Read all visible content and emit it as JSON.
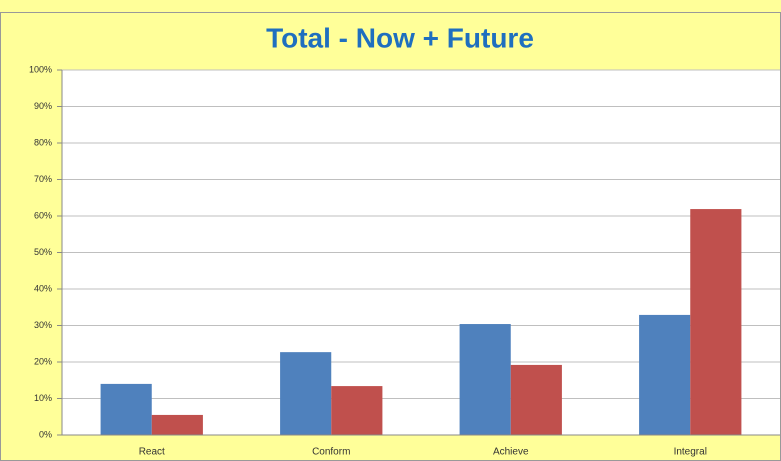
{
  "chart_data": {
    "type": "bar",
    "title": "Total - Now + Future",
    "categories": [
      "React",
      "Conform",
      "Achieve",
      "Integral"
    ],
    "series": [
      {
        "color": "#4F81BD",
        "values": [
          14,
          22.7,
          30.4,
          32.9
        ]
      },
      {
        "color": "#C0504D",
        "values": [
          5.5,
          13.4,
          19.2,
          61.9
        ]
      }
    ],
    "ylim": [
      0,
      100
    ],
    "yticks": [
      {
        "value": 0,
        "label": "0%"
      },
      {
        "value": 10,
        "label": "10%"
      },
      {
        "value": 20,
        "label": "20%"
      },
      {
        "value": 30,
        "label": "30%"
      },
      {
        "value": 40,
        "label": "40%"
      },
      {
        "value": 50,
        "label": "50%"
      },
      {
        "value": 60,
        "label": "60%"
      },
      {
        "value": 70,
        "label": "70%"
      },
      {
        "value": 80,
        "label": "80%"
      },
      {
        "value": 90,
        "label": "90%"
      },
      {
        "value": 100,
        "label": "100%"
      }
    ],
    "grid": true
  }
}
